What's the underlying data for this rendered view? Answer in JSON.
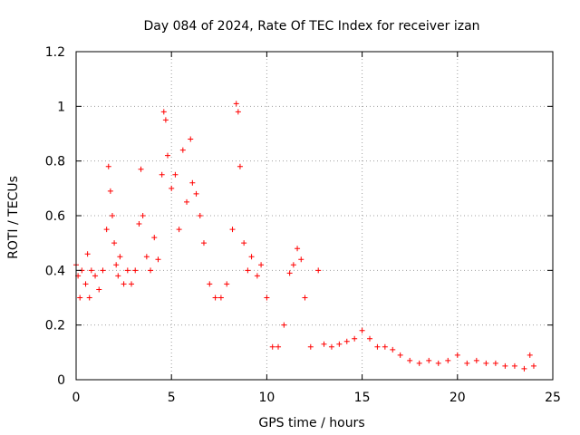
{
  "chart_data": {
    "type": "scatter",
    "title": "Day 084 of 2024, Rate Of TEC Index for receiver izan",
    "xlabel": "GPS time / hours",
    "ylabel": "ROTI / TECUs",
    "xlim": [
      0,
      25
    ],
    "ylim": [
      0,
      1.2
    ],
    "xticks": [
      0,
      5,
      10,
      15,
      20,
      25
    ],
    "xtick_labels": [
      "0",
      "5",
      "10",
      "15",
      "20",
      "25"
    ],
    "yticks": [
      0,
      0.2,
      0.4,
      0.6,
      0.8,
      1,
      1.2
    ],
    "ytick_labels": [
      "0",
      "0.2",
      "0.4",
      "0.6",
      "0.8",
      "1",
      "1.2"
    ],
    "grid": true,
    "marker": "+",
    "series": [
      {
        "name": "ROTI",
        "color": "#ff0000",
        "x": [
          0.0,
          0.1,
          0.2,
          0.3,
          0.5,
          0.6,
          0.7,
          0.8,
          1.0,
          1.2,
          1.4,
          1.6,
          1.7,
          1.8,
          1.9,
          2.0,
          2.1,
          2.2,
          2.3,
          2.5,
          2.7,
          2.9,
          3.1,
          3.3,
          3.4,
          3.5,
          3.7,
          3.9,
          4.1,
          4.3,
          4.5,
          4.6,
          4.7,
          4.8,
          5.0,
          5.2,
          5.4,
          5.6,
          5.8,
          6.0,
          6.1,
          6.3,
          6.5,
          6.7,
          7.0,
          7.3,
          7.6,
          7.9,
          8.2,
          8.4,
          8.5,
          8.6,
          8.8,
          9.0,
          9.2,
          9.5,
          9.7,
          10.0,
          10.3,
          10.6,
          10.9,
          11.2,
          11.4,
          11.6,
          11.8,
          12.0,
          12.3,
          12.7,
          13.0,
          13.4,
          13.8,
          14.2,
          14.6,
          15.0,
          15.4,
          15.8,
          16.2,
          16.6,
          17.0,
          17.5,
          18.0,
          18.5,
          19.0,
          19.5,
          20.0,
          20.5,
          21.0,
          21.5,
          22.0,
          22.5,
          23.0,
          23.5,
          23.8,
          24.0
        ],
        "y": [
          0.42,
          0.38,
          0.3,
          0.4,
          0.35,
          0.46,
          0.3,
          0.4,
          0.38,
          0.33,
          0.4,
          0.55,
          0.78,
          0.69,
          0.6,
          0.5,
          0.42,
          0.38,
          0.45,
          0.35,
          0.4,
          0.35,
          0.4,
          0.57,
          0.77,
          0.6,
          0.45,
          0.4,
          0.52,
          0.44,
          0.75,
          0.98,
          0.95,
          0.82,
          0.7,
          0.75,
          0.55,
          0.84,
          0.65,
          0.88,
          0.72,
          0.68,
          0.6,
          0.5,
          0.35,
          0.3,
          0.3,
          0.35,
          0.55,
          1.01,
          0.98,
          0.78,
          0.5,
          0.4,
          0.45,
          0.38,
          0.42,
          0.3,
          0.12,
          0.12,
          0.2,
          0.39,
          0.42,
          0.48,
          0.44,
          0.3,
          0.12,
          0.4,
          0.13,
          0.12,
          0.13,
          0.14,
          0.15,
          0.18,
          0.15,
          0.12,
          0.12,
          0.11,
          0.09,
          0.07,
          0.06,
          0.07,
          0.06,
          0.07,
          0.09,
          0.06,
          0.07,
          0.06,
          0.06,
          0.05,
          0.05,
          0.04,
          0.09,
          0.05
        ]
      }
    ]
  }
}
